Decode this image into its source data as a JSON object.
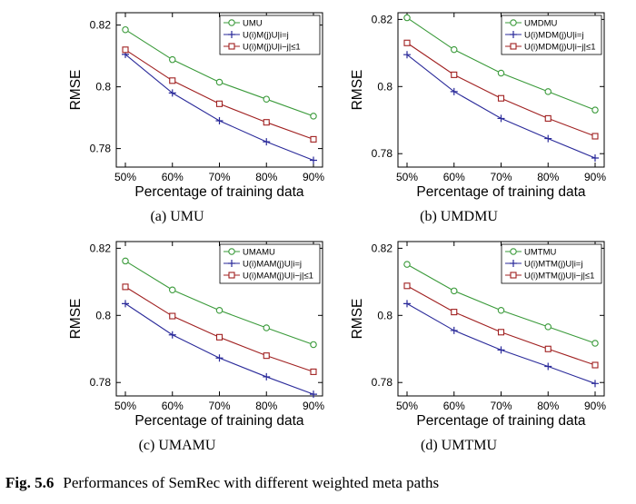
{
  "figure": {
    "label": "Fig. 5.6",
    "caption": "Performances of SemRec with different weighted meta paths"
  },
  "colors": {
    "green": "#3a9a3a",
    "blue": "#2a2a9a",
    "red": "#a02020"
  },
  "chart_data": [
    {
      "type": "line",
      "subcaption": "(a) UMU",
      "xlabel": "Percentage of training data",
      "ylabel": "RMSE",
      "categories": [
        "50%",
        "60%",
        "70%",
        "80%",
        "90%"
      ],
      "yticks": [
        "0.82",
        "0.8",
        "0.78"
      ],
      "ylim": [
        0.774,
        0.824
      ],
      "grid": false,
      "legend_position": "top-right",
      "series": [
        {
          "name": "UMU",
          "marker": "circle",
          "color": "#3a9a3a",
          "values": [
            0.8185,
            0.8088,
            0.8015,
            0.796,
            0.7905
          ]
        },
        {
          "name": "U(i)M(j)U|i=j",
          "marker": "plus",
          "color": "#2a2a9a",
          "values": [
            0.8105,
            0.798,
            0.789,
            0.7822,
            0.7762
          ]
        },
        {
          "name": "U(i)M(j)U|i−j|≤1",
          "marker": "square",
          "color": "#a02020",
          "values": [
            0.812,
            0.802,
            0.7945,
            0.7885,
            0.783
          ]
        }
      ]
    },
    {
      "type": "line",
      "subcaption": "(b) UMDMU",
      "xlabel": "Percentage of training data",
      "ylabel": "RMSE",
      "categories": [
        "50%",
        "60%",
        "70%",
        "80%",
        "90%"
      ],
      "yticks": [
        "0.82",
        "0.8",
        "0.78"
      ],
      "ylim": [
        0.776,
        0.822
      ],
      "grid": false,
      "legend_position": "top-right",
      "series": [
        {
          "name": "UMDMU",
          "marker": "circle",
          "color": "#3a9a3a",
          "values": [
            0.8205,
            0.811,
            0.804,
            0.7985,
            0.793
          ]
        },
        {
          "name": "U(i)MDM(j)U|i=j",
          "marker": "plus",
          "color": "#2a2a9a",
          "values": [
            0.8095,
            0.7985,
            0.7905,
            0.7845,
            0.7787
          ]
        },
        {
          "name": "U(i)MDM(j)U|i−j|≤1",
          "marker": "square",
          "color": "#a02020",
          "values": [
            0.813,
            0.8035,
            0.7965,
            0.7905,
            0.7852
          ]
        }
      ]
    },
    {
      "type": "line",
      "subcaption": "(c) UMAMU",
      "xlabel": "Percentage of training data",
      "ylabel": "RMSE",
      "categories": [
        "50%",
        "60%",
        "70%",
        "80%",
        "90%"
      ],
      "yticks": [
        "0.82",
        "0.8",
        "0.78"
      ],
      "ylim": [
        0.776,
        0.822
      ],
      "grid": false,
      "legend_position": "top-right",
      "series": [
        {
          "name": "UMAMU",
          "marker": "circle",
          "color": "#3a9a3a",
          "values": [
            0.8162,
            0.8076,
            0.8015,
            0.7963,
            0.7913
          ]
        },
        {
          "name": "U(i)MAM(j)U|i=j",
          "marker": "plus",
          "color": "#2a2a9a",
          "values": [
            0.8035,
            0.7942,
            0.7873,
            0.7817,
            0.7765
          ]
        },
        {
          "name": "U(i)MAM(j)U|i−j|≤1",
          "marker": "square",
          "color": "#a02020",
          "values": [
            0.8085,
            0.7998,
            0.7935,
            0.788,
            0.7832
          ]
        }
      ]
    },
    {
      "type": "line",
      "subcaption": "(d) UMTMU",
      "xlabel": "Percentage of training data",
      "ylabel": "RMSE",
      "categories": [
        "50%",
        "60%",
        "70%",
        "80%",
        "90%"
      ],
      "yticks": [
        "0.82",
        "0.8",
        "0.78"
      ],
      "ylim": [
        0.776,
        0.822
      ],
      "grid": false,
      "legend_position": "top-right",
      "series": [
        {
          "name": "UMTMU",
          "marker": "circle",
          "color": "#3a9a3a",
          "values": [
            0.8152,
            0.8073,
            0.8015,
            0.7966,
            0.7917
          ]
        },
        {
          "name": "U(i)MTM(j)U|i=j",
          "marker": "plus",
          "color": "#2a2a9a",
          "values": [
            0.8035,
            0.7955,
            0.7897,
            0.7848,
            0.7797
          ]
        },
        {
          "name": "U(i)MTM(j)U|i−j|≤1",
          "marker": "square",
          "color": "#a02020",
          "values": [
            0.8088,
            0.801,
            0.795,
            0.79,
            0.7852
          ]
        }
      ]
    }
  ]
}
